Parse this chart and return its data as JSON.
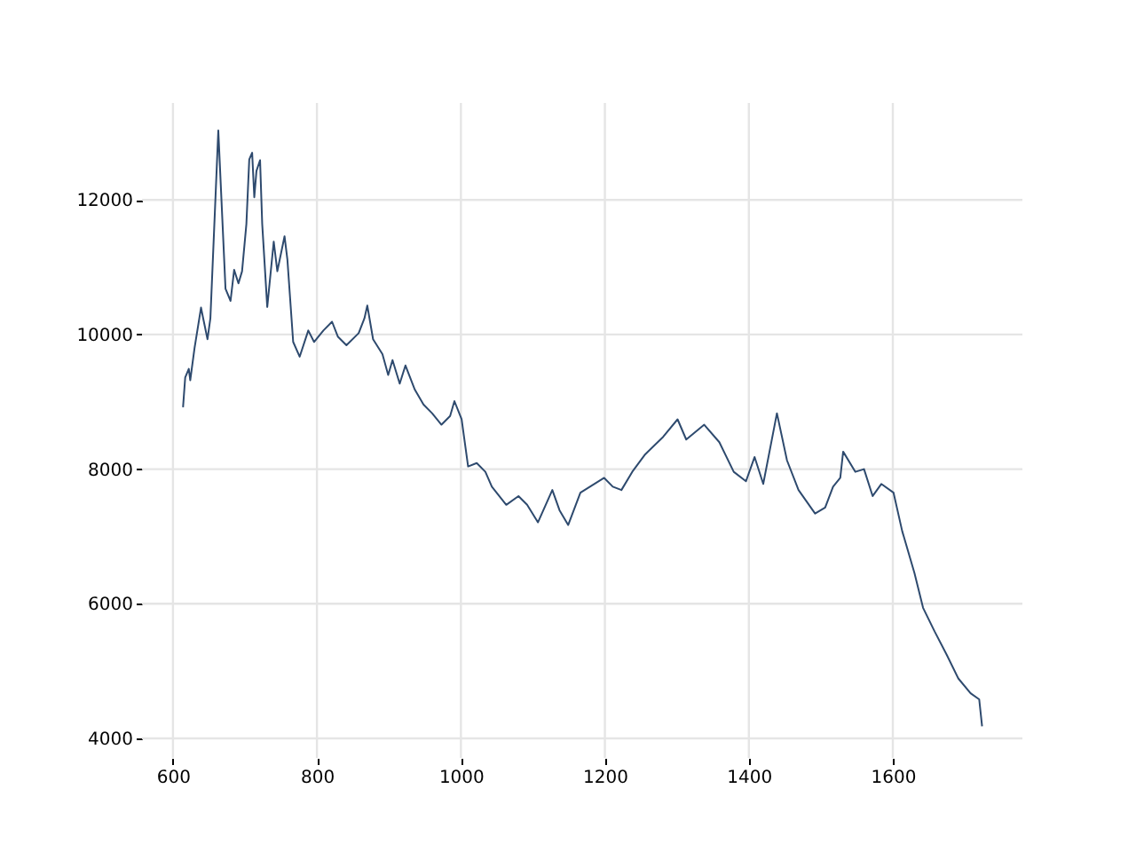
{
  "chart_data": {
    "type": "line",
    "grid": true,
    "marker": "none",
    "line_style": "solid",
    "xlim": [
      557,
      1780
    ],
    "ylim": [
      3710,
      13440
    ],
    "xticks": [
      600,
      800,
      1000,
      1200,
      1400,
      1600
    ],
    "yticks": [
      4000,
      6000,
      8000,
      10000,
      12000
    ],
    "series": [
      {
        "color": "#2e4a6e",
        "x": [
          614,
          617,
          622,
          624,
          630,
          639,
          642,
          648,
          652,
          663,
          673,
          680,
          685,
          691,
          696,
          702,
          706,
          710,
          713,
          716,
          721,
          724,
          731,
          740,
          745,
          755,
          759,
          767,
          776,
          788,
          796,
          809,
          821,
          829,
          841,
          858,
          866,
          870,
          878,
          891,
          899,
          905,
          915,
          923,
          936,
          948,
          960,
          973,
          985,
          991,
          1001,
          1010,
          1022,
          1034,
          1043,
          1063,
          1080,
          1092,
          1107,
          1127,
          1137,
          1149,
          1166,
          1199,
          1211,
          1223,
          1238,
          1256,
          1281,
          1301,
          1313,
          1338,
          1359,
          1379,
          1396,
          1408,
          1420,
          1439,
          1453,
          1469,
          1492,
          1506,
          1517,
          1527,
          1531,
          1548,
          1560,
          1572,
          1584,
          1601,
          1613,
          1630,
          1642,
          1658,
          1675,
          1691,
          1708,
          1720,
          1724
        ],
        "values": [
          8920,
          9360,
          9490,
          9320,
          9800,
          10400,
          10240,
          9930,
          10240,
          13030,
          10680,
          10500,
          10960,
          10760,
          10940,
          11640,
          12600,
          12700,
          12040,
          12430,
          12590,
          11640,
          10410,
          11380,
          10940,
          11460,
          11110,
          9890,
          9670,
          10060,
          9890,
          10060,
          10190,
          9970,
          9840,
          10020,
          10240,
          10430,
          9930,
          9710,
          9400,
          9620,
          9270,
          9540,
          9180,
          8960,
          8830,
          8660,
          8790,
          9010,
          8740,
          8040,
          8090,
          7960,
          7740,
          7470,
          7600,
          7470,
          7210,
          7690,
          7390,
          7170,
          7650,
          7870,
          7740,
          7690,
          7960,
          8220,
          8480,
          8740,
          8440,
          8660,
          8400,
          7960,
          7820,
          8180,
          7780,
          8830,
          8130,
          7690,
          7340,
          7430,
          7740,
          7870,
          8260,
          7960,
          8000,
          7600,
          7780,
          7650,
          7080,
          6460,
          5940,
          5590,
          5240,
          4890,
          4670,
          4580,
          4180
        ]
      }
    ]
  }
}
